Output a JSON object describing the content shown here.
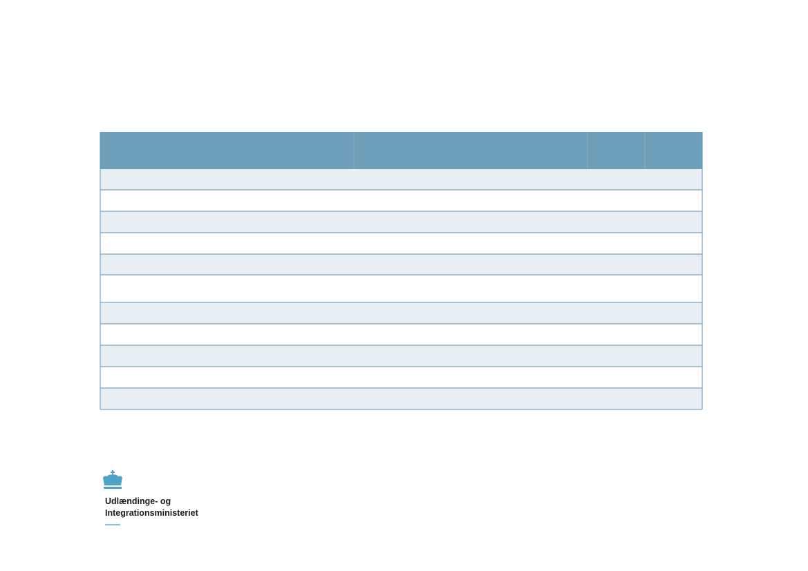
{
  "logo": {
    "lines": [
      "Udlændinge- og",
      "Integrationsministeriet"
    ]
  }
}
